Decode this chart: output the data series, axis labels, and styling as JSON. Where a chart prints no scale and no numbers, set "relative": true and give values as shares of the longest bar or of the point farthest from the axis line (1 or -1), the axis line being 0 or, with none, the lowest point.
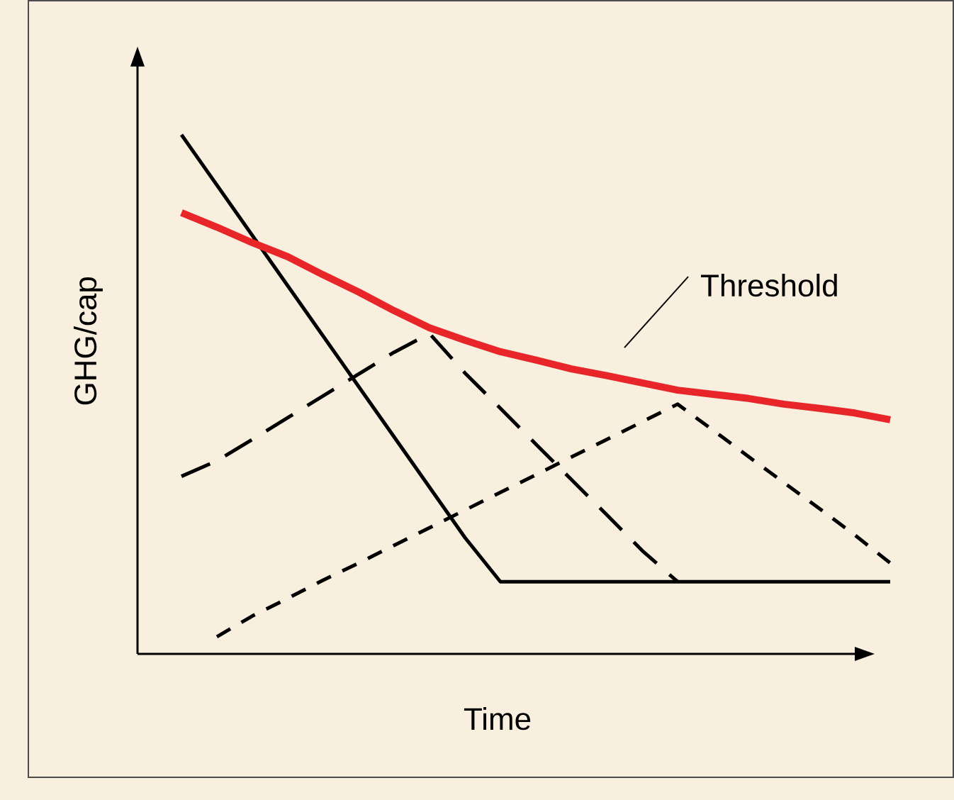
{
  "chart_data": {
    "type": "line",
    "relative": true,
    "xlabel": "Time",
    "ylabel": "GHG/cap",
    "marker": "none",
    "categories": [
      null,
      null,
      null,
      null,
      null,
      null,
      null,
      null,
      null,
      null,
      null,
      null,
      null,
      null,
      null,
      null,
      null,
      null,
      null,
      null,
      null
    ],
    "series": [
      {
        "color": "#000000",
        "line_style": "solid",
        "values": [
          1,
          0.903,
          0.806,
          0.709,
          0.612,
          0.515,
          0.418,
          0.321,
          0.224,
          0.139,
          0.139,
          0.139,
          0.139,
          0.139,
          0.139,
          0.139,
          0.139,
          0.139,
          0.139,
          0.139,
          0.139
        ]
      },
      {
        "color": "#e8262a",
        "line_style": "solid",
        "values": [
          0.85,
          0.822,
          0.792,
          0.765,
          0.73,
          0.697,
          0.661,
          0.628,
          0.604,
          0.582,
          0.566,
          0.549,
          0.536,
          0.522,
          0.508,
          0.5,
          0.492,
          0.481,
          0.473,
          0.464,
          0.451
        ]
      },
      {
        "color": "#000000",
        "line_style": "dashed",
        "values": [
          0.342,
          0.372,
          0.413,
          0.455,
          0.497,
          0.539,
          0.581,
          0.617,
          0.541,
          0.473,
          0.404,
          0.336,
          0.268,
          0.199,
          0.139,
          null,
          null,
          null,
          null,
          null,
          null
        ]
      },
      {
        "color": "#000000",
        "line_style": "dashed",
        "values": [
          null,
          0.033,
          0.073,
          0.107,
          0.142,
          0.175,
          0.209,
          0.243,
          0.277,
          0.311,
          0.345,
          0.379,
          0.413,
          0.447,
          0.481,
          0.431,
          0.38,
          0.33,
          0.28,
          0.229,
          0.175
        ]
      }
    ],
    "annotations": [
      "Threshold"
    ]
  }
}
